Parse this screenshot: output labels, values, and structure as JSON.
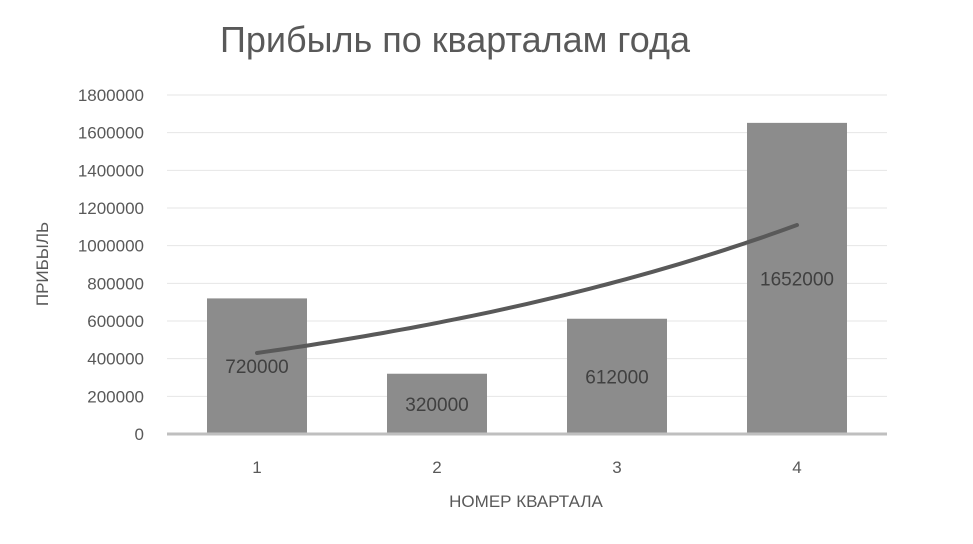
{
  "chart_data": {
    "type": "bar",
    "title": "Прибыль по кварталам года",
    "xlabel": "НОМЕР КВАРТАЛА",
    "ylabel": "ПРИБЫЛЬ",
    "categories": [
      "1",
      "2",
      "3",
      "4"
    ],
    "values": [
      720000,
      320000,
      612000,
      1652000
    ],
    "data_labels": [
      "720000",
      "320000",
      "612000",
      "1652000"
    ],
    "ylim": [
      0,
      1800000
    ],
    "yticks": [
      "0",
      "200000",
      "400000",
      "600000",
      "800000",
      "1000000",
      "1200000",
      "1400000",
      "1600000",
      "1800000"
    ],
    "grid": true,
    "legend": "none",
    "bar_color": "#8c8c8c",
    "trendline": {
      "type": "exponential",
      "values": [
        430000,
        595000,
        820000,
        1110000
      ]
    }
  }
}
